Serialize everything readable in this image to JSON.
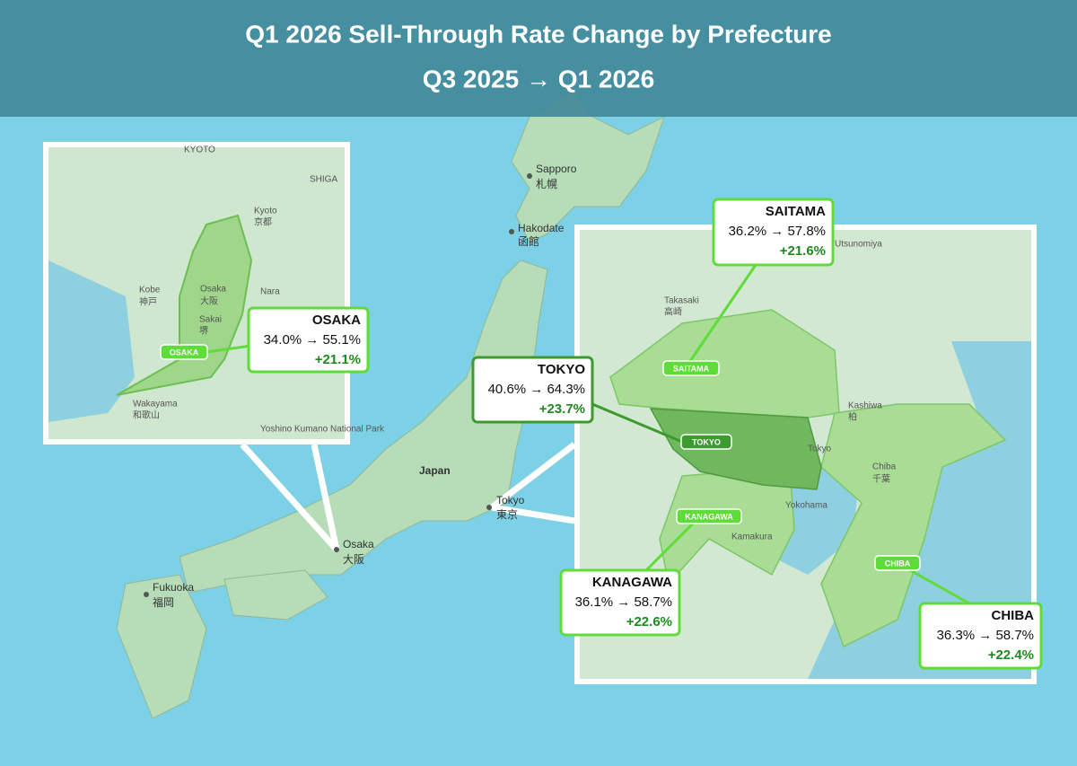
{
  "header": {
    "title": "Q1 2026 Sell-Through Rate Change by Prefecture",
    "subtitle": "Q3 2025 → Q1 2026"
  },
  "callouts": [
    {
      "name": "OSAKA",
      "rates": "34.0% → 55.1%",
      "change": "+21.1%",
      "badge": "OSAKA"
    },
    {
      "name": "TOKYO",
      "rates": "40.6% → 64.3%",
      "change": "+23.7%",
      "badge": "TOKYO"
    },
    {
      "name": "SAITAMA",
      "rates": "36.2% → 57.8%",
      "change": "+21.6%",
      "badge": "SAITAMA"
    },
    {
      "name": "KANAGAWA",
      "rates": "36.1% → 58.7%",
      "change": "+22.6%",
      "badge": "KANAGAWA"
    },
    {
      "name": "CHIBA",
      "rates": "36.3% → 58.7%",
      "change": "+22.4%",
      "badge": "CHIBA"
    }
  ],
  "map_labels": [
    "Sapporo",
    "札幌",
    "Hakodate",
    "函館",
    "Japan",
    "Tokyo",
    "東京",
    "Osaka",
    "大阪",
    "Fukuoka",
    "福岡"
  ],
  "osaka_inset_labels": [
    "KYOTO",
    "SHIGA",
    "Kyoto",
    "京都",
    "Kobe",
    "神戸",
    "Osaka",
    "大阪",
    "Nara",
    "Sakai",
    "堺",
    "Wakayama",
    "和歌山",
    "Yoshino Kumano National Park"
  ],
  "tokyo_inset_labels": [
    "Takasaki",
    "高崎",
    "Utsunomiya",
    "Kashiwa",
    "柏",
    "Chiba",
    "千葉",
    "Yokohama",
    "Kamakura",
    "Tokyo"
  ]
}
